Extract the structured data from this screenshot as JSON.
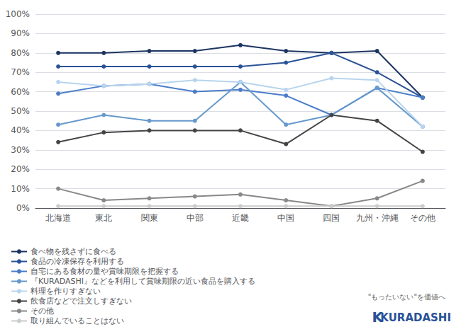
{
  "chart_data": {
    "type": "line",
    "categories": [
      "北海道",
      "東北",
      "関東",
      "中部",
      "近畿",
      "中国",
      "四国",
      "九州・沖縄",
      "その他"
    ],
    "series": [
      {
        "name": "食べ物を残さずに食べる",
        "color": "#1c3461",
        "values": [
          80,
          80,
          81,
          81,
          84,
          81,
          80,
          81,
          57
        ]
      },
      {
        "name": "食品の冷凍保存を利用する",
        "color": "#2a5298",
        "values": [
          73,
          73,
          73,
          73,
          73,
          75,
          80,
          70,
          57
        ]
      },
      {
        "name": "自宅にある食材の量や賞味期限を把握する",
        "color": "#4a7cc9",
        "values": [
          59,
          63,
          64,
          60,
          61,
          58,
          48,
          62,
          57
        ]
      },
      {
        "name": "『KURADASHI』などを利用して賞味期限の近い食品を購入する",
        "color": "#6699cc",
        "values": [
          43,
          48,
          45,
          45,
          65,
          43,
          48,
          62,
          42
        ]
      },
      {
        "name": "料理を作りすぎない",
        "color": "#b8d4ee",
        "values": [
          65,
          63,
          64,
          66,
          65,
          61,
          67,
          66,
          42
        ]
      },
      {
        "name": "飲食店などで注文しすぎない",
        "color": "#444444",
        "values": [
          34,
          39,
          40,
          40,
          40,
          33,
          48,
          45,
          29
        ]
      },
      {
        "name": "その他",
        "color": "#888888",
        "values": [
          10,
          4,
          5,
          6,
          7,
          4,
          1,
          5,
          14
        ]
      },
      {
        "name": "取り組んでいることはない",
        "color": "#cccccc",
        "values": [
          1,
          1,
          1,
          1,
          1,
          1,
          1,
          1,
          1
        ]
      }
    ],
    "ylim": [
      0,
      100
    ],
    "yticks": [
      {
        "value": 0,
        "label": "0%"
      },
      {
        "value": 10,
        "label": "10%"
      },
      {
        "value": 20,
        "label": "20%"
      },
      {
        "value": 30,
        "label": "30%"
      },
      {
        "value": 40,
        "label": "40%"
      },
      {
        "value": 50,
        "label": "50%"
      },
      {
        "value": 60,
        "label": "60%"
      },
      {
        "value": 70,
        "label": "70%"
      },
      {
        "value": 80,
        "label": "80%"
      },
      {
        "value": 90,
        "label": "90%"
      },
      {
        "value": 100,
        "label": "100%"
      }
    ],
    "grid": true,
    "legend": "bottom",
    "marker": "circle",
    "annotations": [
      "\"もったいない\"を価値へ",
      "K",
      "KURADASHI"
    ]
  }
}
